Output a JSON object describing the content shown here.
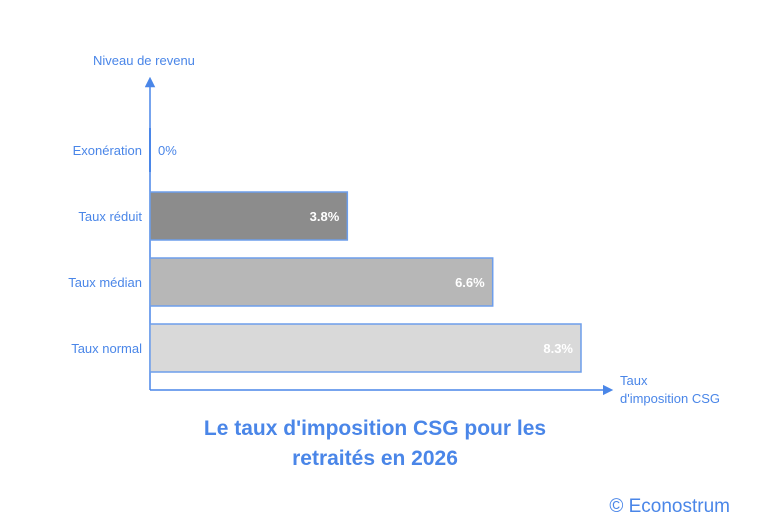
{
  "chart_data": {
    "type": "bar",
    "orientation": "horizontal",
    "ylabel": "Niveau de revenu",
    "xlabel_lines": [
      "Taux",
      "d'imposition CSG"
    ],
    "categories": [
      "Exonération",
      "Taux réduit",
      "Taux médian",
      "Taux normal"
    ],
    "values": [
      0,
      3.8,
      6.6,
      8.3
    ],
    "value_labels": [
      "0%",
      "3.8%",
      "6.6%",
      "8.3%"
    ],
    "colors": [
      "#4a86e8",
      "#8c8c8c",
      "#b7b7b7",
      "#d9d9d9"
    ],
    "grid": false,
    "title_lines": [
      "Le taux d'imposition CSG pour les",
      "retraités en 2026"
    ]
  },
  "credit": "© Econostrum",
  "colors": {
    "accent": "#4a86e8",
    "bar_border": "#6d9eeb"
  }
}
